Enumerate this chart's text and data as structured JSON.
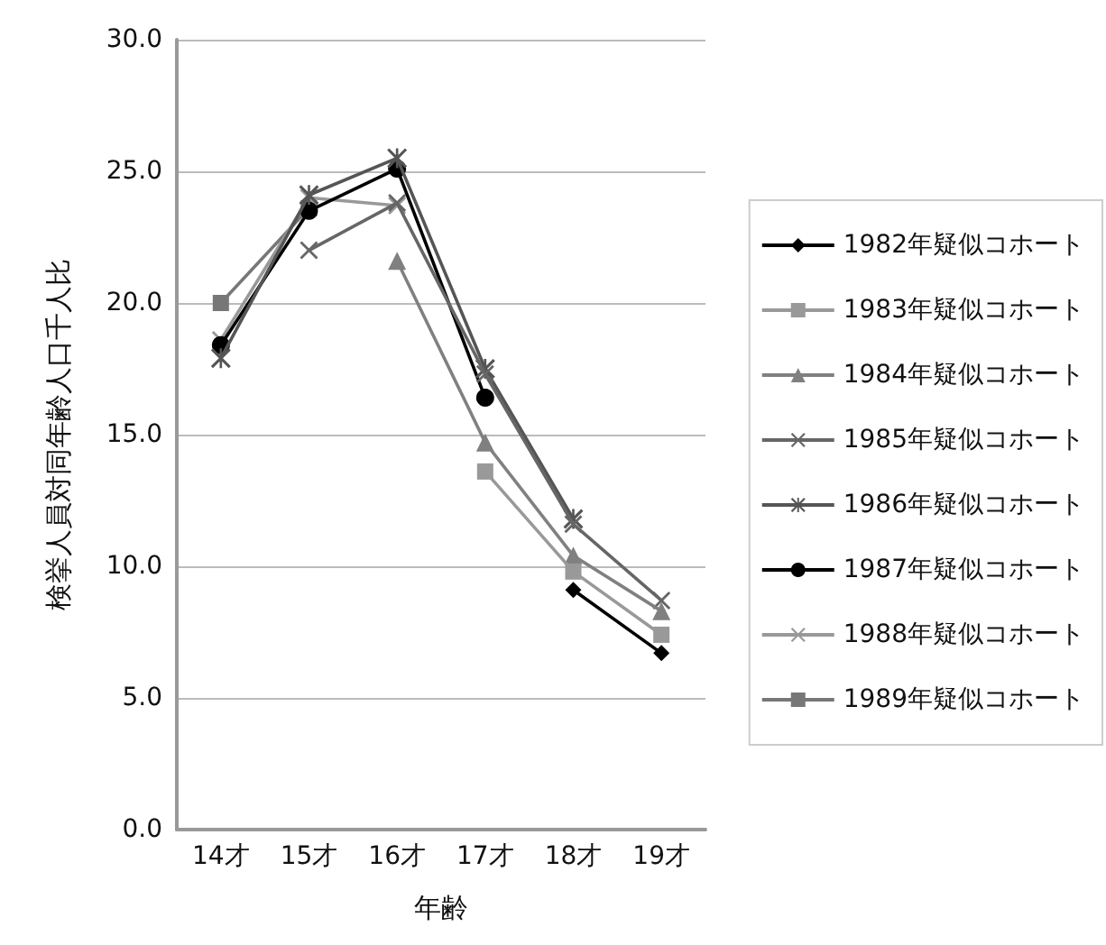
{
  "chart_data": {
    "type": "line",
    "xlabel": "年齢",
    "ylabel": "検挙人員対同年齢人口千人比",
    "categories": [
      "14才",
      "15才",
      "16才",
      "17才",
      "18才",
      "19才"
    ],
    "series": [
      {
        "name": "1982年疑似コホート",
        "color": "#000000",
        "marker": "diamond",
        "values": [
          null,
          null,
          null,
          null,
          9.1,
          6.7
        ]
      },
      {
        "name": "1983年疑似コホート",
        "color": "#999999",
        "marker": "square",
        "values": [
          null,
          null,
          null,
          13.6,
          9.8,
          7.4
        ]
      },
      {
        "name": "1984年疑似コホート",
        "color": "#808080",
        "marker": "triangle",
        "values": [
          null,
          null,
          21.6,
          14.7,
          10.4,
          8.3
        ]
      },
      {
        "name": "1985年疑似コホート",
        "color": "#666666",
        "marker": "cross",
        "values": [
          null,
          22.0,
          23.8,
          17.3,
          11.6,
          8.7
        ]
      },
      {
        "name": "1986年疑似コホート",
        "color": "#555555",
        "marker": "star",
        "values": [
          17.9,
          24.1,
          25.5,
          17.5,
          11.8,
          null
        ]
      },
      {
        "name": "1987年疑似コホート",
        "color": "#000000",
        "marker": "circle",
        "values": [
          18.4,
          23.5,
          25.1,
          16.4,
          null,
          null
        ]
      },
      {
        "name": "1988年疑似コホート",
        "color": "#999999",
        "marker": "cross",
        "values": [
          18.6,
          24.0,
          23.7,
          null,
          null,
          null
        ]
      },
      {
        "name": "1989年疑似コホート",
        "color": "#777777",
        "marker": "square",
        "values": [
          20.0,
          23.6,
          null,
          null,
          null,
          null
        ]
      }
    ],
    "ylim": [
      0,
      30
    ],
    "yticks": [
      {
        "value": 0,
        "label": "0.0"
      },
      {
        "value": 5,
        "label": "5.0"
      },
      {
        "value": 10,
        "label": "10.0"
      },
      {
        "value": 15,
        "label": "15.0"
      },
      {
        "value": 20,
        "label": "20.0"
      },
      {
        "value": 25,
        "label": "25.0"
      },
      {
        "value": 30,
        "label": "30.0"
      }
    ],
    "grid": "y",
    "legend": "right",
    "line_style": "solid"
  }
}
